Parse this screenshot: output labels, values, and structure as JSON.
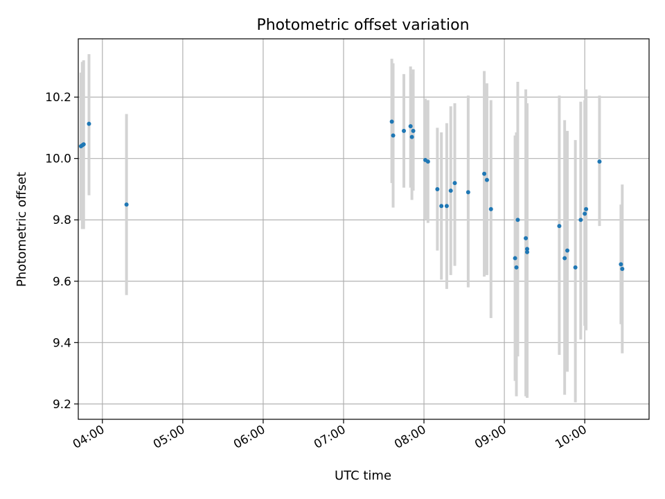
{
  "chart_data": {
    "type": "scatter",
    "title": "Photometric offset variation",
    "xlabel": "UTC time",
    "ylabel": "Photometric offset",
    "x_is_time": true,
    "xlim": [
      "03:42",
      "10:48"
    ],
    "ylim": [
      9.15,
      10.39
    ],
    "xticks": [
      "04:00",
      "05:00",
      "06:00",
      "07:00",
      "08:00",
      "09:00",
      "10:00"
    ],
    "yticks": [
      9.2,
      9.4,
      9.6,
      9.8,
      10.0,
      10.2
    ],
    "grid": true,
    "marker_color": "#1f77b4",
    "errorbar_color": "#d3d3d3",
    "points": [
      {
        "t": "03:44",
        "y": 10.04,
        "ylo": 9.8,
        "yhi": 10.28
      },
      {
        "t": "03:45",
        "y": 10.043,
        "ylo": 9.77,
        "yhi": 10.315
      },
      {
        "t": "03:46",
        "y": 10.046,
        "ylo": 9.77,
        "yhi": 10.32
      },
      {
        "t": "03:50",
        "y": 10.113,
        "ylo": 9.88,
        "yhi": 10.34
      },
      {
        "t": "04:18",
        "y": 9.85,
        "ylo": 9.555,
        "yhi": 10.145
      },
      {
        "t": "07:36",
        "y": 10.12,
        "ylo": 9.92,
        "yhi": 10.325
      },
      {
        "t": "07:37",
        "y": 10.075,
        "ylo": 9.84,
        "yhi": 10.31
      },
      {
        "t": "07:45",
        "y": 10.09,
        "ylo": 9.905,
        "yhi": 10.275
      },
      {
        "t": "07:50",
        "y": 10.105,
        "ylo": 9.905,
        "yhi": 10.3
      },
      {
        "t": "07:51",
        "y": 10.07,
        "ylo": 9.865,
        "yhi": 10.275
      },
      {
        "t": "07:52",
        "y": 10.09,
        "ylo": 9.895,
        "yhi": 10.29
      },
      {
        "t": "08:01",
        "y": 9.995,
        "ylo": 9.8,
        "yhi": 10.195
      },
      {
        "t": "08:03",
        "y": 9.99,
        "ylo": 9.79,
        "yhi": 10.19
      },
      {
        "t": "08:10",
        "y": 9.9,
        "ylo": 9.7,
        "yhi": 10.1
      },
      {
        "t": "08:13",
        "y": 9.845,
        "ylo": 9.605,
        "yhi": 10.085
      },
      {
        "t": "08:17",
        "y": 9.845,
        "ylo": 9.575,
        "yhi": 10.115
      },
      {
        "t": "08:20",
        "y": 9.895,
        "ylo": 9.62,
        "yhi": 10.17
      },
      {
        "t": "08:23",
        "y": 9.92,
        "ylo": 9.65,
        "yhi": 10.18
      },
      {
        "t": "08:33",
        "y": 9.89,
        "ylo": 9.58,
        "yhi": 10.205
      },
      {
        "t": "08:45",
        "y": 9.95,
        "ylo": 9.615,
        "yhi": 10.285
      },
      {
        "t": "08:47",
        "y": 9.93,
        "ylo": 9.62,
        "yhi": 10.245
      },
      {
        "t": "08:50",
        "y": 9.835,
        "ylo": 9.48,
        "yhi": 10.19
      },
      {
        "t": "09:08",
        "y": 9.675,
        "ylo": 9.275,
        "yhi": 10.075
      },
      {
        "t": "09:09",
        "y": 9.645,
        "ylo": 9.225,
        "yhi": 10.085
      },
      {
        "t": "09:10",
        "y": 9.8,
        "ylo": 9.355,
        "yhi": 10.25
      },
      {
        "t": "09:16",
        "y": 9.74,
        "ylo": 9.225,
        "yhi": 10.225
      },
      {
        "t": "09:17",
        "y": 9.695,
        "ylo": 9.22,
        "yhi": 10.175
      },
      {
        "t": "09:17",
        "y": 9.705,
        "ylo": 9.23,
        "yhi": 10.18
      },
      {
        "t": "09:41",
        "y": 9.78,
        "ylo": 9.36,
        "yhi": 10.205
      },
      {
        "t": "09:45",
        "y": 9.675,
        "ylo": 9.23,
        "yhi": 10.125
      },
      {
        "t": "09:47",
        "y": 9.7,
        "ylo": 9.305,
        "yhi": 10.09
      },
      {
        "t": "09:53",
        "y": 9.645,
        "ylo": 9.205,
        "yhi": 10.06
      },
      {
        "t": "09:57",
        "y": 9.8,
        "ylo": 9.41,
        "yhi": 10.185
      },
      {
        "t": "10:00",
        "y": 9.82,
        "ylo": 9.455,
        "yhi": 10.19
      },
      {
        "t": "10:01",
        "y": 9.835,
        "ylo": 9.44,
        "yhi": 10.225
      },
      {
        "t": "10:11",
        "y": 9.99,
        "ylo": 9.78,
        "yhi": 10.205
      },
      {
        "t": "10:27",
        "y": 9.655,
        "ylo": 9.46,
        "yhi": 9.85
      },
      {
        "t": "10:28",
        "y": 9.64,
        "ylo": 9.365,
        "yhi": 9.915
      }
    ]
  }
}
